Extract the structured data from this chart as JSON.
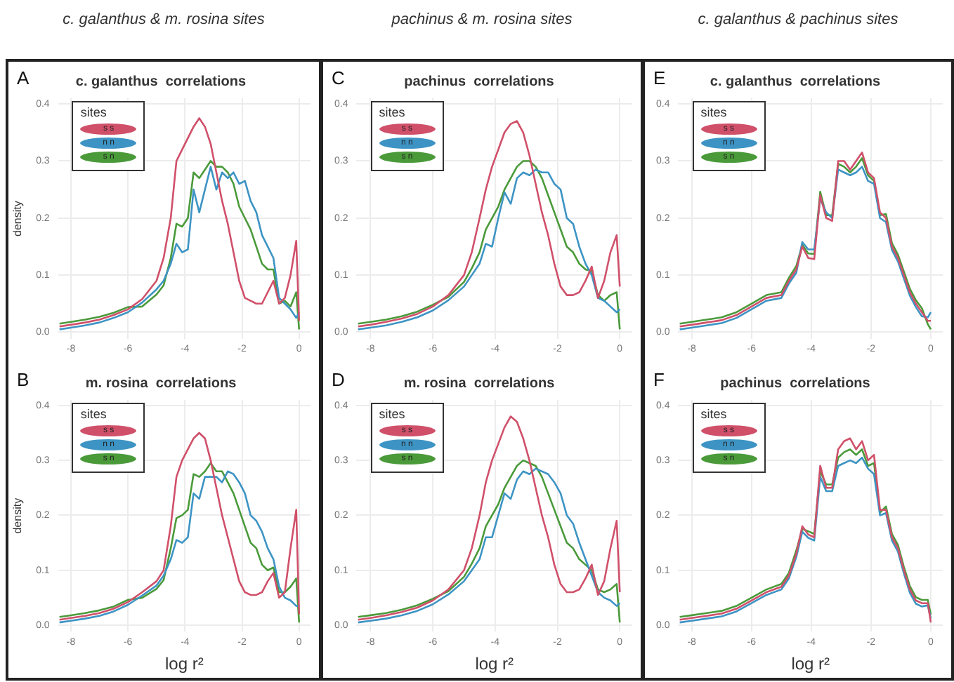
{
  "chart_data": [
    {
      "type": "line",
      "subtitle": "c. galanthus  &  m. rosina sites",
      "title": "c. galanthus  correlations",
      "annotations": [
        "A"
      ],
      "ylabel": "density",
      "legend": "top left",
      "legend_title": "sites",
      "grid": true,
      "x": [
        -8.4,
        -8,
        -7.5,
        -7,
        -6.5,
        -6,
        -5.5,
        -5,
        -4.75,
        -4.5,
        -4.3,
        -4.1,
        -3.9,
        -3.7,
        -3.5,
        -3.3,
        -3.1,
        -2.9,
        -2.7,
        -2.5,
        -2.3,
        -2.1,
        -1.9,
        -1.7,
        -1.5,
        -1.3,
        -1.1,
        -0.9,
        -0.7,
        -0.5,
        -0.3,
        -0.1,
        0
      ],
      "xlim": [
        -8.45,
        0.4
      ],
      "xticks": [
        -8,
        -6,
        -4,
        -2,
        0
      ],
      "ylim": [
        -0.012,
        0.41
      ],
      "yticks": [
        {
          "value": 0,
          "label": "0.0"
        },
        {
          "value": 0.1,
          "label": "0.1"
        },
        {
          "value": 0.2,
          "label": "0.2"
        },
        {
          "value": 0.3,
          "label": "0.3"
        },
        {
          "value": 0.4,
          "label": "0.4"
        }
      ],
      "series": [
        {
          "name": "s s",
          "color": "#d0506a",
          "values": [
            0.01,
            0.013,
            0.017,
            0.022,
            0.03,
            0.04,
            0.058,
            0.09,
            0.13,
            0.2,
            0.3,
            0.32,
            0.34,
            0.36,
            0.375,
            0.36,
            0.33,
            0.28,
            0.23,
            0.19,
            0.14,
            0.09,
            0.06,
            0.055,
            0.05,
            0.05,
            0.07,
            0.09,
            0.05,
            0.06,
            0.1,
            0.16,
            0.02
          ]
        },
        {
          "name": "n n",
          "color": "#3d94c4",
          "values": [
            0.005,
            0.008,
            0.012,
            0.017,
            0.025,
            0.035,
            0.052,
            0.075,
            0.09,
            0.12,
            0.155,
            0.14,
            0.145,
            0.25,
            0.21,
            0.25,
            0.29,
            0.25,
            0.28,
            0.27,
            0.28,
            0.26,
            0.265,
            0.23,
            0.21,
            0.17,
            0.15,
            0.13,
            0.06,
            0.05,
            0.04,
            0.025,
            0.035
          ]
        },
        {
          "name": "s n",
          "color": "#4a9a3a",
          "values": [
            0.015,
            0.018,
            0.022,
            0.027,
            0.034,
            0.044,
            0.045,
            0.066,
            0.082,
            0.13,
            0.19,
            0.185,
            0.2,
            0.28,
            0.27,
            0.285,
            0.3,
            0.29,
            0.29,
            0.28,
            0.26,
            0.22,
            0.2,
            0.18,
            0.15,
            0.12,
            0.11,
            0.11,
            0.05,
            0.055,
            0.045,
            0.07,
            0.005
          ]
        }
      ]
    },
    {
      "type": "line",
      "title": "m. rosina  correlations",
      "annotations": [
        "B"
      ],
      "xlabel": "log r²",
      "ylabel": "density",
      "legend": "top left",
      "legend_title": "sites",
      "grid": true,
      "x": [
        -8.4,
        -8,
        -7.5,
        -7,
        -6.5,
        -6,
        -5.5,
        -5,
        -4.75,
        -4.5,
        -4.3,
        -4.1,
        -3.9,
        -3.7,
        -3.5,
        -3.3,
        -3.1,
        -2.9,
        -2.7,
        -2.5,
        -2.3,
        -2.1,
        -1.9,
        -1.7,
        -1.5,
        -1.3,
        -1.1,
        -0.9,
        -0.7,
        -0.5,
        -0.3,
        -0.1,
        0
      ],
      "xlim": [
        -8.45,
        0.4
      ],
      "xticks": [
        -8,
        -6,
        -4,
        -2,
        0
      ],
      "ylim": [
        -0.012,
        0.41
      ],
      "yticks": [
        {
          "value": 0,
          "label": "0.0"
        },
        {
          "value": 0.1,
          "label": "0.1"
        },
        {
          "value": 0.2,
          "label": "0.2"
        },
        {
          "value": 0.3,
          "label": "0.3"
        },
        {
          "value": 0.4,
          "label": "0.4"
        }
      ],
      "series": [
        {
          "name": "s s",
          "color": "#d0506a",
          "values": [
            0.01,
            0.013,
            0.017,
            0.022,
            0.03,
            0.042,
            0.06,
            0.08,
            0.1,
            0.18,
            0.27,
            0.3,
            0.32,
            0.34,
            0.35,
            0.34,
            0.3,
            0.25,
            0.2,
            0.16,
            0.12,
            0.08,
            0.06,
            0.055,
            0.055,
            0.06,
            0.08,
            0.095,
            0.05,
            0.06,
            0.14,
            0.21,
            0.02
          ]
        },
        {
          "name": "n n",
          "color": "#3d94c4",
          "values": [
            0.005,
            0.008,
            0.012,
            0.017,
            0.025,
            0.037,
            0.054,
            0.072,
            0.09,
            0.12,
            0.155,
            0.15,
            0.16,
            0.24,
            0.23,
            0.27,
            0.27,
            0.27,
            0.26,
            0.28,
            0.275,
            0.26,
            0.24,
            0.2,
            0.19,
            0.17,
            0.14,
            0.12,
            0.07,
            0.05,
            0.045,
            0.035,
            0.035
          ]
        },
        {
          "name": "s n",
          "color": "#4a9a3a",
          "values": [
            0.015,
            0.018,
            0.022,
            0.027,
            0.034,
            0.046,
            0.05,
            0.066,
            0.082,
            0.14,
            0.195,
            0.2,
            0.21,
            0.275,
            0.27,
            0.28,
            0.295,
            0.28,
            0.28,
            0.26,
            0.24,
            0.21,
            0.18,
            0.15,
            0.14,
            0.11,
            0.1,
            0.105,
            0.06,
            0.06,
            0.07,
            0.085,
            0.005
          ]
        }
      ]
    },
    {
      "type": "line",
      "subtitle": "pachinus  &  m. rosina sites",
      "title": "pachinus  correlations",
      "annotations": [
        "C"
      ],
      "legend": "top left",
      "legend_title": "sites",
      "grid": true,
      "x": [
        -8.4,
        -8,
        -7.5,
        -7,
        -6.5,
        -6,
        -5.5,
        -5,
        -4.75,
        -4.5,
        -4.3,
        -4.1,
        -3.9,
        -3.7,
        -3.5,
        -3.3,
        -3.1,
        -2.9,
        -2.7,
        -2.5,
        -2.3,
        -2.1,
        -1.9,
        -1.7,
        -1.5,
        -1.3,
        -1.1,
        -0.9,
        -0.7,
        -0.5,
        -0.3,
        -0.1,
        0
      ],
      "xlim": [
        -8.45,
        0.4
      ],
      "xticks": [
        -8,
        -6,
        -4,
        -2,
        0
      ],
      "ylim": [
        -0.012,
        0.41
      ],
      "yticks": [
        {
          "value": 0,
          "label": "0.0"
        },
        {
          "value": 0.1,
          "label": "0.1"
        },
        {
          "value": 0.2,
          "label": "0.2"
        },
        {
          "value": 0.3,
          "label": "0.3"
        },
        {
          "value": 0.4,
          "label": "0.4"
        }
      ],
      "series": [
        {
          "name": "s s",
          "color": "#d0506a",
          "values": [
            0.01,
            0.013,
            0.018,
            0.024,
            0.032,
            0.045,
            0.065,
            0.1,
            0.14,
            0.2,
            0.25,
            0.29,
            0.32,
            0.35,
            0.365,
            0.37,
            0.35,
            0.31,
            0.26,
            0.21,
            0.17,
            0.12,
            0.08,
            0.065,
            0.065,
            0.07,
            0.09,
            0.115,
            0.06,
            0.09,
            0.14,
            0.17,
            0.08
          ]
        },
        {
          "name": "n n",
          "color": "#3d94c4",
          "values": [
            0.005,
            0.008,
            0.012,
            0.018,
            0.026,
            0.038,
            0.056,
            0.08,
            0.1,
            0.12,
            0.155,
            0.15,
            0.2,
            0.245,
            0.225,
            0.27,
            0.28,
            0.275,
            0.285,
            0.28,
            0.28,
            0.26,
            0.25,
            0.2,
            0.19,
            0.15,
            0.12,
            0.1,
            0.06,
            0.055,
            0.045,
            0.035,
            0.04
          ]
        },
        {
          "name": "s n",
          "color": "#4a9a3a",
          "values": [
            0.015,
            0.018,
            0.022,
            0.028,
            0.036,
            0.048,
            0.062,
            0.088,
            0.112,
            0.14,
            0.18,
            0.2,
            0.22,
            0.25,
            0.27,
            0.29,
            0.3,
            0.3,
            0.29,
            0.27,
            0.24,
            0.21,
            0.18,
            0.15,
            0.14,
            0.12,
            0.11,
            0.107,
            0.065,
            0.055,
            0.065,
            0.07,
            0.005
          ]
        }
      ]
    },
    {
      "type": "line",
      "title": "m. rosina  correlations",
      "annotations": [
        "D"
      ],
      "xlabel": "log r²",
      "legend": "top left",
      "legend_title": "sites",
      "grid": true,
      "x": [
        -8.4,
        -8,
        -7.5,
        -7,
        -6.5,
        -6,
        -5.5,
        -5,
        -4.75,
        -4.5,
        -4.3,
        -4.1,
        -3.9,
        -3.7,
        -3.5,
        -3.3,
        -3.1,
        -2.9,
        -2.7,
        -2.5,
        -2.3,
        -2.1,
        -1.9,
        -1.7,
        -1.5,
        -1.3,
        -1.1,
        -0.9,
        -0.7,
        -0.5,
        -0.3,
        -0.1,
        0
      ],
      "xlim": [
        -8.45,
        0.4
      ],
      "xticks": [
        -8,
        -6,
        -4,
        -2,
        0
      ],
      "ylim": [
        -0.012,
        0.41
      ],
      "yticks": [
        {
          "value": 0,
          "label": "0.0"
        },
        {
          "value": 0.1,
          "label": "0.1"
        },
        {
          "value": 0.2,
          "label": "0.2"
        },
        {
          "value": 0.3,
          "label": "0.3"
        },
        {
          "value": 0.4,
          "label": "0.4"
        }
      ],
      "series": [
        {
          "name": "s s",
          "color": "#d0506a",
          "values": [
            0.01,
            0.013,
            0.018,
            0.024,
            0.032,
            0.045,
            0.065,
            0.1,
            0.14,
            0.2,
            0.26,
            0.3,
            0.33,
            0.36,
            0.38,
            0.37,
            0.34,
            0.3,
            0.25,
            0.2,
            0.16,
            0.11,
            0.075,
            0.06,
            0.06,
            0.065,
            0.085,
            0.11,
            0.055,
            0.08,
            0.14,
            0.19,
            0.06
          ]
        },
        {
          "name": "n n",
          "color": "#3d94c4",
          "values": [
            0.005,
            0.008,
            0.012,
            0.018,
            0.026,
            0.038,
            0.056,
            0.08,
            0.1,
            0.12,
            0.16,
            0.16,
            0.2,
            0.24,
            0.23,
            0.265,
            0.28,
            0.275,
            0.285,
            0.28,
            0.275,
            0.26,
            0.24,
            0.2,
            0.185,
            0.15,
            0.12,
            0.09,
            0.06,
            0.05,
            0.045,
            0.035,
            0.04
          ]
        },
        {
          "name": "s n",
          "color": "#4a9a3a",
          "values": [
            0.015,
            0.018,
            0.022,
            0.028,
            0.036,
            0.048,
            0.062,
            0.088,
            0.112,
            0.14,
            0.18,
            0.2,
            0.22,
            0.25,
            0.27,
            0.29,
            0.3,
            0.295,
            0.29,
            0.27,
            0.24,
            0.21,
            0.18,
            0.15,
            0.14,
            0.12,
            0.11,
            0.1,
            0.065,
            0.06,
            0.065,
            0.075,
            0.005
          ]
        }
      ]
    },
    {
      "type": "line",
      "subtitle": "c. galanthus  &  pachinus sites",
      "title": "c. galanthus  correlations",
      "annotations": [
        "E"
      ],
      "legend": "top left",
      "legend_title": "sites",
      "grid": true,
      "x": [
        -8.4,
        -8,
        -7.5,
        -7,
        -6.5,
        -6,
        -5.5,
        -5,
        -4.75,
        -4.5,
        -4.3,
        -4.1,
        -3.9,
        -3.7,
        -3.5,
        -3.3,
        -3.1,
        -2.9,
        -2.7,
        -2.5,
        -2.3,
        -2.1,
        -1.9,
        -1.7,
        -1.5,
        -1.3,
        -1.1,
        -0.9,
        -0.7,
        -0.5,
        -0.3,
        -0.1,
        0
      ],
      "xlim": [
        -8.45,
        0.4
      ],
      "xticks": [
        -8,
        -6,
        -4,
        -2,
        0
      ],
      "ylim": [
        -0.012,
        0.41
      ],
      "yticks": [
        {
          "value": 0,
          "label": "0.0"
        },
        {
          "value": 0.1,
          "label": "0.1"
        },
        {
          "value": 0.2,
          "label": "0.2"
        },
        {
          "value": 0.3,
          "label": "0.3"
        },
        {
          "value": 0.4,
          "label": "0.4"
        }
      ],
      "series": [
        {
          "name": "s s",
          "color": "#d0506a",
          "values": [
            0.01,
            0.013,
            0.017,
            0.021,
            0.03,
            0.045,
            0.06,
            0.065,
            0.09,
            0.11,
            0.15,
            0.13,
            0.128,
            0.24,
            0.2,
            0.195,
            0.3,
            0.3,
            0.285,
            0.3,
            0.315,
            0.28,
            0.27,
            0.21,
            0.2,
            0.15,
            0.13,
            0.1,
            0.07,
            0.05,
            0.035,
            0.02,
            0.02
          ]
        },
        {
          "name": "n n",
          "color": "#3d94c4",
          "values": [
            0.005,
            0.008,
            0.012,
            0.016,
            0.025,
            0.04,
            0.055,
            0.06,
            0.085,
            0.104,
            0.158,
            0.145,
            0.145,
            0.234,
            0.21,
            0.2,
            0.285,
            0.28,
            0.275,
            0.28,
            0.29,
            0.265,
            0.26,
            0.2,
            0.193,
            0.144,
            0.124,
            0.094,
            0.064,
            0.044,
            0.028,
            0.026,
            0.035
          ]
        },
        {
          "name": "s n",
          "color": "#4a9a3a",
          "values": [
            0.015,
            0.018,
            0.022,
            0.026,
            0.035,
            0.05,
            0.065,
            0.07,
            0.095,
            0.116,
            0.153,
            0.138,
            0.137,
            0.246,
            0.205,
            0.205,
            0.295,
            0.29,
            0.28,
            0.29,
            0.305,
            0.275,
            0.265,
            0.205,
            0.207,
            0.156,
            0.136,
            0.106,
            0.076,
            0.056,
            0.042,
            0.014,
            0.005
          ]
        }
      ]
    },
    {
      "type": "line",
      "title": "pachinus  correlations",
      "annotations": [
        "F"
      ],
      "xlabel": "log r²",
      "legend": "top left",
      "legend_title": "sites",
      "grid": true,
      "x": [
        -8.4,
        -8,
        -7.5,
        -7,
        -6.5,
        -6,
        -5.5,
        -5,
        -4.75,
        -4.5,
        -4.3,
        -4.1,
        -3.9,
        -3.7,
        -3.5,
        -3.3,
        -3.1,
        -2.9,
        -2.7,
        -2.5,
        -2.3,
        -2.1,
        -1.9,
        -1.7,
        -1.5,
        -1.3,
        -1.1,
        -0.9,
        -0.7,
        -0.5,
        -0.3,
        -0.1,
        0
      ],
      "xlim": [
        -8.45,
        0.4
      ],
      "xticks": [
        -8,
        -6,
        -4,
        -2,
        0
      ],
      "ylim": [
        -0.012,
        0.41
      ],
      "yticks": [
        {
          "value": 0,
          "label": "0.0"
        },
        {
          "value": 0.1,
          "label": "0.1"
        },
        {
          "value": 0.2,
          "label": "0.2"
        },
        {
          "value": 0.3,
          "label": "0.3"
        },
        {
          "value": 0.4,
          "label": "0.4"
        }
      ],
      "series": [
        {
          "name": "s s",
          "color": "#d0506a",
          "values": [
            0.01,
            0.013,
            0.017,
            0.021,
            0.03,
            0.045,
            0.06,
            0.07,
            0.09,
            0.13,
            0.18,
            0.165,
            0.16,
            0.29,
            0.25,
            0.25,
            0.32,
            0.335,
            0.34,
            0.32,
            0.335,
            0.3,
            0.31,
            0.21,
            0.21,
            0.16,
            0.14,
            0.1,
            0.065,
            0.045,
            0.04,
            0.04,
            0.005
          ]
        },
        {
          "name": "n n",
          "color": "#3d94c4",
          "values": [
            0.005,
            0.008,
            0.012,
            0.016,
            0.025,
            0.04,
            0.055,
            0.065,
            0.085,
            0.124,
            0.17,
            0.159,
            0.154,
            0.27,
            0.244,
            0.244,
            0.29,
            0.295,
            0.3,
            0.295,
            0.305,
            0.285,
            0.275,
            0.2,
            0.204,
            0.154,
            0.134,
            0.094,
            0.059,
            0.039,
            0.034,
            0.036,
            0.012
          ]
        },
        {
          "name": "s n",
          "color": "#4a9a3a",
          "values": [
            0.015,
            0.018,
            0.022,
            0.026,
            0.035,
            0.05,
            0.065,
            0.075,
            0.095,
            0.136,
            0.175,
            0.171,
            0.166,
            0.28,
            0.256,
            0.256,
            0.305,
            0.315,
            0.32,
            0.31,
            0.32,
            0.29,
            0.295,
            0.205,
            0.216,
            0.166,
            0.146,
            0.106,
            0.071,
            0.051,
            0.046,
            0.046,
            0.019
          ]
        }
      ]
    }
  ]
}
